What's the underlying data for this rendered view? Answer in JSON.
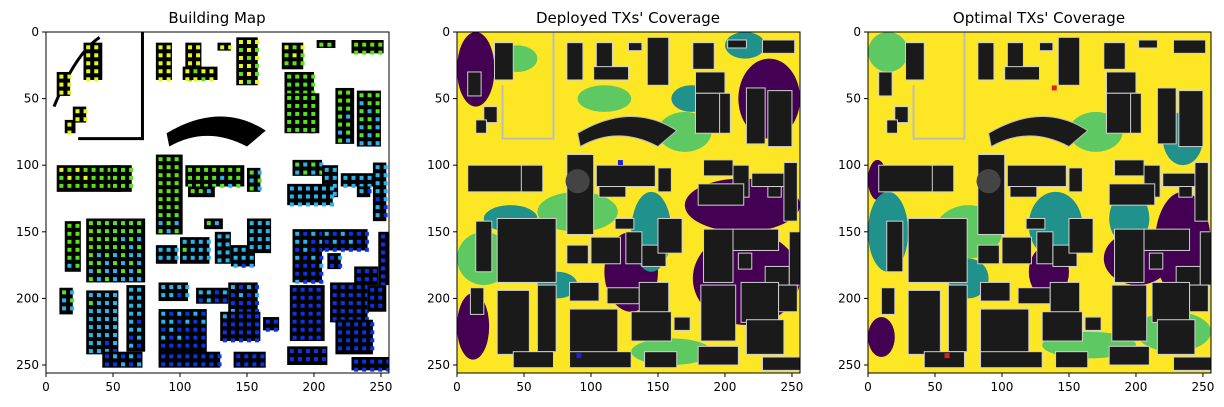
{
  "chart_data": [
    {
      "type": "heatmap",
      "title": "Building Map",
      "xlabel": "",
      "ylabel": "",
      "x_ticks": [
        0,
        50,
        100,
        150,
        200,
        250
      ],
      "y_ticks": [
        0,
        50,
        100,
        150,
        200,
        250
      ],
      "xlim": [
        0,
        256
      ],
      "ylim": [
        256,
        0
      ],
      "grid": false,
      "colors": {
        "background": "#ffffff",
        "building": "#000000",
        "dot_a": "#e6f51a",
        "dot_b": "#56e31a",
        "dot_c": "#27b4ee",
        "dot_d": "#0a33e6"
      }
    },
    {
      "type": "heatmap",
      "title": "Deployed TXs' Coverage",
      "xlabel": "",
      "ylabel": "",
      "x_ticks": [
        0,
        50,
        100,
        150,
        200,
        250
      ],
      "y_ticks": [
        0,
        50,
        100,
        150,
        200,
        250
      ],
      "xlim": [
        0,
        256
      ],
      "ylim": [
        256,
        0
      ],
      "grid": false,
      "tx_markers": [
        {
          "x": 122,
          "y": 98
        },
        {
          "x": 91,
          "y": 243
        }
      ],
      "colors": {
        "high": "#fde725",
        "mid_high": "#5ec962",
        "mid": "#21918c",
        "low": "#440154",
        "building": "#1a1a1a",
        "marker": "#1f1fd6"
      }
    },
    {
      "type": "heatmap",
      "title": "Optimal TXs' Coverage",
      "xlabel": "",
      "ylabel": "",
      "x_ticks": [
        0,
        50,
        100,
        150,
        200,
        250
      ],
      "y_ticks": [
        0,
        50,
        100,
        150,
        200,
        250
      ],
      "xlim": [
        0,
        256
      ],
      "ylim": [
        256,
        0
      ],
      "grid": false,
      "tx_markers": [
        {
          "x": 139,
          "y": 42
        },
        {
          "x": 59,
          "y": 243
        }
      ],
      "colors": {
        "high": "#fde725",
        "mid_high": "#5ec962",
        "mid": "#21918c",
        "low": "#440154",
        "building": "#1a1a1a",
        "marker": "#e02020"
      }
    }
  ]
}
